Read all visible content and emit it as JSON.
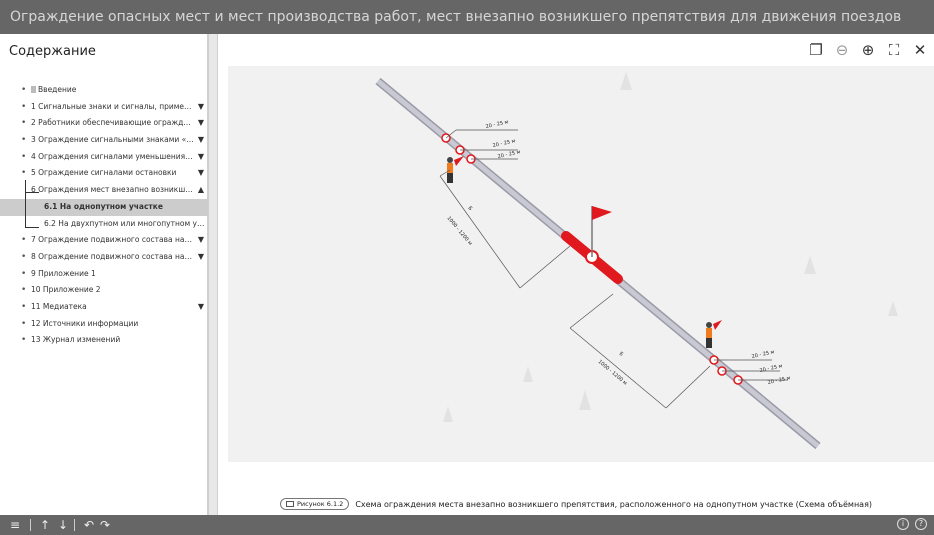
{
  "window": {
    "title": "Ограждение опасных мест и мест производства работ, мест внезапно возникшего препятствия для движения поездов"
  },
  "sidebar": {
    "heading": "Содержание",
    "items": [
      {
        "label": "Введение",
        "doc": true
      },
      {
        "label": "1 Сигнальные знаки и сигналы, применяем...",
        "expandable": true
      },
      {
        "label": "2 Работники обеспечивающие ограждение о...",
        "expandable": true
      },
      {
        "label": "3 Ограждение сигнальными знаками «С»",
        "expandable": true
      },
      {
        "label": "4 Ограждения сигналами уменьшения скоро...",
        "expandable": true
      },
      {
        "label": "5 Ограждение сигналами остановки",
        "expandable": true
      },
      {
        "label": "6 Ограждения мест внезапно возникшего п...",
        "expanded": true
      },
      {
        "label": "6.1 На однопутном участке",
        "active": true
      },
      {
        "label": "6.2 На двухпутном или многопутном уча..."
      },
      {
        "label": "7 Ограждение подвижного состава на перег...",
        "expandable": true
      },
      {
        "label": "8 Ограждение подвижного состава на станц...",
        "expandable": true
      },
      {
        "label": "9 Приложение 1"
      },
      {
        "label": "10 Приложение 2"
      },
      {
        "label": "11 Медиатека",
        "expandable": true
      },
      {
        "label": "12 Источники информации"
      },
      {
        "label": "13 Журнал изменений"
      }
    ]
  },
  "viewer": {
    "toolbar": [
      "copy-icon",
      "zoom-out-icon",
      "zoom-in-icon",
      "fullscreen-icon",
      "close-icon"
    ],
    "figure": {
      "distance_upper": "1000 - 1200 м",
      "distance_lower": "1000 - 1200 м",
      "marker_upper": "Б",
      "marker_lower": "Б",
      "gaps_upper": [
        "20 - 25 м",
        "20 - 25 м",
        "20 - 25 м"
      ],
      "gaps_lower": [
        "20 - 25 м",
        "20 - 25 м",
        "20 - 25 м"
      ],
      "rail_color": "#b8b8c4",
      "danger_color": "#e0191e"
    },
    "caption": {
      "badge": "Рисунок 6.1.2",
      "text": "Схема ограждения места внезапно возникшего препятствия, расположенного на однопутном участке (Схема объёмная)"
    }
  },
  "footer": {
    "left_buttons": [
      "menu-icon",
      "arrow-up-icon",
      "arrow-down-icon",
      "back-icon",
      "forward-icon"
    ],
    "right_buttons": [
      "info-icon",
      "help-icon"
    ]
  }
}
